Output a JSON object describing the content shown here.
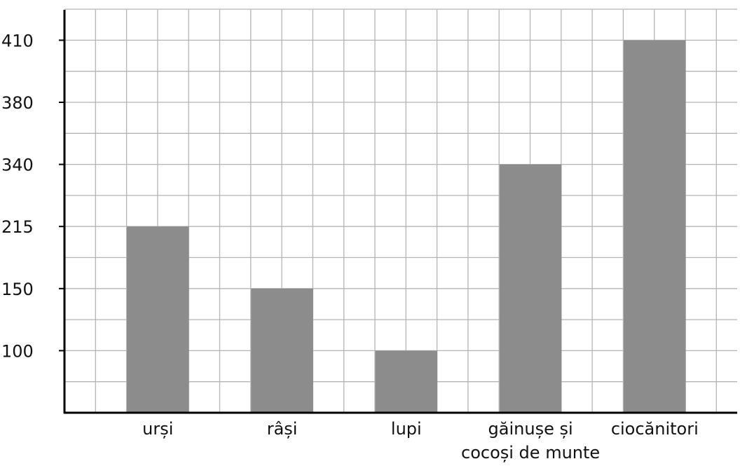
{
  "chart_data": {
    "type": "bar",
    "title": "",
    "xlabel": "",
    "ylabel": "",
    "y_tick_labels": [
      "100",
      "150",
      "215",
      "340",
      "380",
      "410"
    ],
    "categories": [
      [
        "urși"
      ],
      [
        "râși"
      ],
      [
        "lupi"
      ],
      [
        "găinușe și",
        "cocoși de munte"
      ],
      [
        "ciocănitori"
      ]
    ],
    "values": [
      215,
      150,
      100,
      340,
      410
    ],
    "grid": true,
    "colors": {
      "bar": "#8c8c8c",
      "grid": "#b4b4b4",
      "axis": "#000000"
    }
  }
}
